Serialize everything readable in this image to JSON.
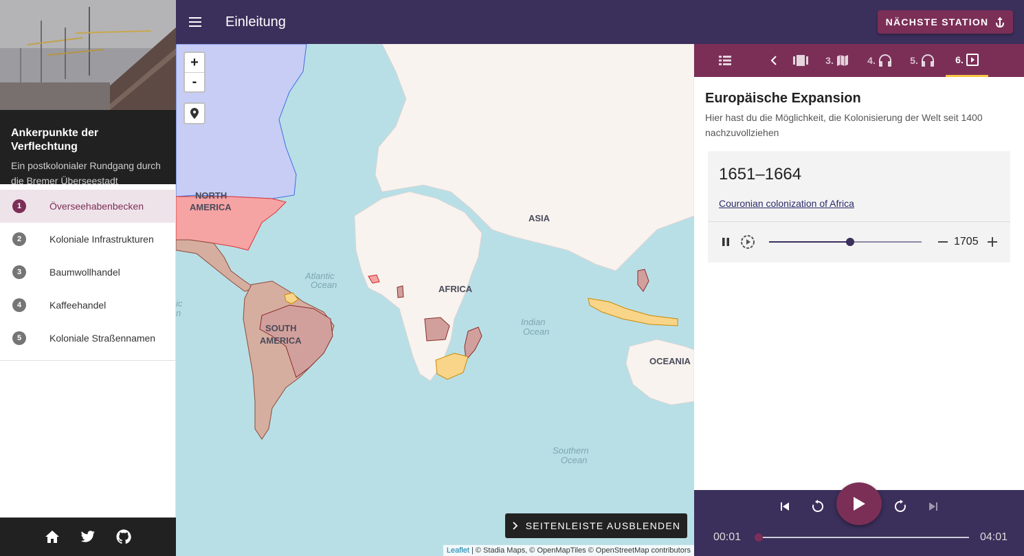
{
  "app": {
    "title": "Ankerpunkte der Verflechtung",
    "subtitle": "Ein postkolonialer Rundgang durch die Bremer Überseestadt",
    "page_title": "Einleitung",
    "next_button": "NÄCHSTE STATION"
  },
  "sidebar": {
    "items": [
      {
        "num": "1",
        "label": "Överseehabenbecken",
        "active": true
      },
      {
        "num": "2",
        "label": "Koloniale Infrastrukturen",
        "active": false
      },
      {
        "num": "3",
        "label": "Baumwollhandel",
        "active": false
      },
      {
        "num": "4",
        "label": "Kaffeehandel",
        "active": false
      },
      {
        "num": "5",
        "label": "Koloniale Straßennamen",
        "active": false
      }
    ],
    "footer_icons": [
      "home-icon",
      "twitter-icon",
      "github-icon"
    ]
  },
  "map": {
    "zoom_in": "+",
    "zoom_out": "-",
    "labels": {
      "north_america_1": "NORTH",
      "north_america_2": "AMERICA",
      "south_america_1": "SOUTH",
      "south_america_2": "AMERICA",
      "asia": "ASIA",
      "africa": "AFRICA",
      "oceania": "OCEANIA",
      "atlantic_1": "Atlantic",
      "atlantic_2": "Ocean",
      "indian_1": "Indian",
      "indian_2": "Ocean",
      "southern_1": "Southern",
      "southern_2": "Ocean",
      "edge_1": "ic",
      "edge_2": "n"
    },
    "hide_sidebar": "SEITENLEISTE AUSBLENDEN",
    "attribution": {
      "leaflet": "Leaflet",
      "rest": " | © Stadia Maps, © OpenMapTiles © OpenStreetMap contributors"
    },
    "colors": {
      "ocean": "#b9dfe6",
      "land": "#f8f3ee",
      "blue_region": "#c7cdf5",
      "red_region": "#f5a3a3",
      "brown_region": "#d6aea0",
      "yellow_region": "#f9d58a"
    }
  },
  "panel": {
    "tabs": [
      {
        "num": "",
        "icon": "list-icon"
      },
      {
        "num": "",
        "icon": "chevron-left-icon"
      },
      {
        "num": "",
        "icon": "gallery-icon"
      },
      {
        "num": "3.",
        "icon": "map-icon"
      },
      {
        "num": "4.",
        "icon": "headphones-icon"
      },
      {
        "num": "5.",
        "icon": "headphones-icon"
      },
      {
        "num": "6.",
        "icon": "video-icon"
      }
    ],
    "title": "Europäische Expansion",
    "description": "Hier hast du die Möglichkeit, die Kolonisierung der Welt seit 1400 nachzuvollziehen",
    "card": {
      "year_range": "1651–1664",
      "link": "Couronian colonization of Africa",
      "year_value": "1705",
      "slider_fraction": 0.53
    }
  },
  "player": {
    "current_time": "00:01",
    "total_time": "04:01",
    "progress_fraction": 0.0
  },
  "theme": {
    "primary": "#3b2f5b",
    "accent": "#7b2f57",
    "highlight": "#f5c542"
  }
}
